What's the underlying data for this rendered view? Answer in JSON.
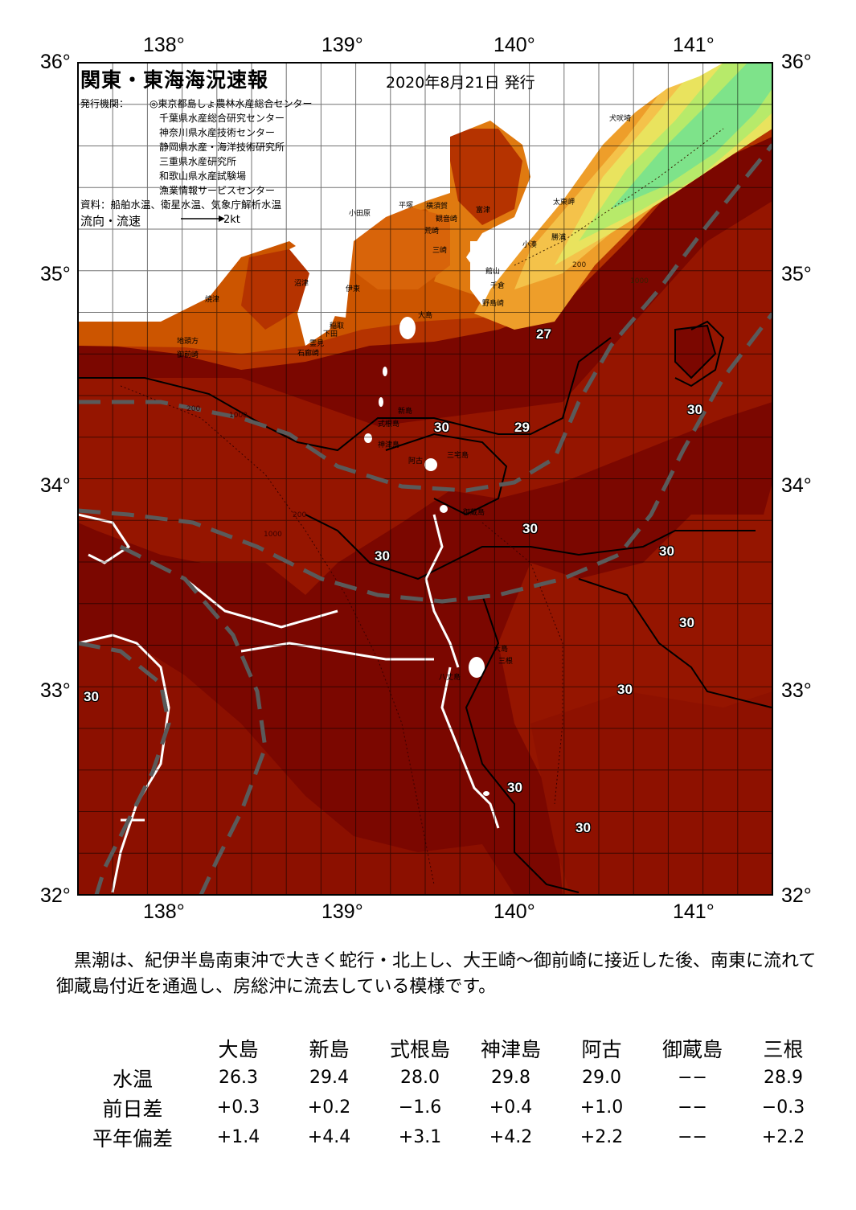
{
  "header": {
    "title": "関東・東海海況速報",
    "date": "2020年8月21日 発行",
    "issuer_label": "発行機関：",
    "issuers": [
      "◎東京都島しょ農林水産総合センター",
      "千葉県水産総合研究センター",
      "神奈川県水産技術センター",
      "静岡県水産・海洋技術研究所",
      "三重県水産研究所",
      "和歌山県水産試験場",
      "漁業情報サービスセンター"
    ],
    "source": "資料：船舶水温、衛星水温、気象庁解析水温",
    "flow_label": "流向・流速",
    "flow_scale": "2kt"
  },
  "axes": {
    "lon_top": [
      "138°",
      "139°",
      "140°",
      "141°"
    ],
    "lon_bottom": [
      "138°",
      "139°",
      "140°",
      "141°"
    ],
    "lat_left": [
      "36°",
      "35°",
      "34°",
      "33°",
      "32°"
    ],
    "lat_right": [
      "36°",
      "35°",
      "34°",
      "33°",
      "32°"
    ]
  },
  "places": [
    "犬吠埼",
    "太東岬",
    "勝浦",
    "小湊",
    "富津",
    "館山",
    "千倉",
    "野島崎",
    "観音崎",
    "横須賀",
    "三崎",
    "平塚",
    "小田原",
    "荒崎",
    "沼津",
    "伊東",
    "焼津",
    "稲取",
    "下田",
    "霊見",
    "石廊崎",
    "地頭方",
    "御前崎",
    "大島",
    "新島",
    "式根島",
    "神津島",
    "阿古",
    "三宅島",
    "御蔵島",
    "八丈島",
    "三根",
    "大島"
  ],
  "contour_labels": [
    "27",
    "29",
    "30",
    "30",
    "30",
    "30",
    "30",
    "30",
    "30",
    "30",
    "30",
    "30"
  ],
  "depth_labels": [
    "200",
    "1000",
    "200",
    "1000",
    "200",
    "1000"
  ],
  "colors": {
    "water_deep": "#7b0700",
    "water_30": "#951500",
    "water_29": "#b53300",
    "water_28": "#cc5500",
    "water_27": "#e07a10",
    "water_26": "#ee9e2a",
    "water_25": "#f4c24a",
    "water_24": "#e9e35e",
    "water_22": "#b7ea6a",
    "water_20": "#7ee38a",
    "kuroshio_axis": "#5a5a5a"
  },
  "description": "黒潮は、紀伊半島南東沖で大きく蛇行・北上し、大王崎～御前崎に接近した後、南東に流れて御蔵島付近を通過し、房総沖に流去している模様です。",
  "table": {
    "stations": [
      "大島",
      "新島",
      "式根島",
      "神津島",
      "阿古",
      "御蔵島",
      "三根"
    ],
    "rows": [
      {
        "label": "水温",
        "values": [
          "26.3",
          "29.4",
          "28.0",
          "29.8",
          "29.0",
          "−−",
          "28.9"
        ]
      },
      {
        "label": "前日差",
        "values": [
          "+0.3",
          "+0.2",
          "−1.6",
          "+0.4",
          "+1.0",
          "−−",
          "−0.3"
        ]
      },
      {
        "label": "平年偏差",
        "values": [
          "+1.4",
          "+4.4",
          "+3.1",
          "+4.2",
          "+2.2",
          "−−",
          "+2.2"
        ]
      }
    ]
  }
}
